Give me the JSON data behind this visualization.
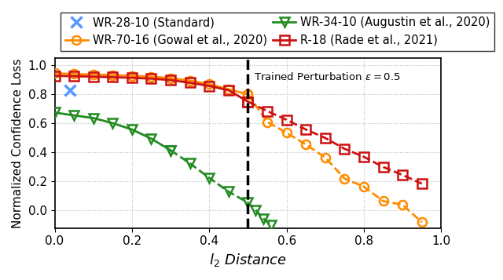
{
  "xlabel": "$l_2$ Distance",
  "ylabel": "Normalized Confidence Loss",
  "xlim": [
    0.0,
    1.0
  ],
  "ylim": [
    -0.12,
    1.05
  ],
  "yticks": [
    0.0,
    0.2,
    0.4,
    0.6,
    0.8,
    1.0
  ],
  "xticks": [
    0.0,
    0.2,
    0.4,
    0.6,
    0.8,
    1.0
  ],
  "vline_x": 0.5,
  "vline_label": "Trained Perturbation $\\epsilon=0.5$",
  "series": [
    {
      "label": "WR-28-10 (Standard)",
      "color": "#5599FF",
      "marker": "x",
      "solid_x": [
        0.04
      ],
      "solid_y": [
        0.826
      ],
      "dashed_x": [],
      "dashed_y": [],
      "linewidth": 2.0,
      "markersize": 10,
      "markeredgewidth": 2.5
    },
    {
      "label": "WR-34-10 (Augustin et al., 2020)",
      "color": "#228B22",
      "marker": "v",
      "solid_x": [
        0.0,
        0.05,
        0.1,
        0.15,
        0.2,
        0.25,
        0.3
      ],
      "solid_y": [
        0.675,
        0.655,
        0.637,
        0.602,
        0.558,
        0.495,
        0.415
      ],
      "dashed_x": [
        0.3,
        0.35,
        0.4,
        0.45,
        0.5,
        0.52,
        0.54,
        0.56
      ],
      "dashed_y": [
        0.415,
        0.325,
        0.225,
        0.13,
        0.055,
        0.005,
        -0.055,
        -0.1
      ],
      "linewidth": 2.0,
      "markersize": 8,
      "markeredgewidth": 1.8
    },
    {
      "label": "WR-70-16 (Gowal et al., 2020)",
      "color": "#FF8C00",
      "marker": "o",
      "solid_x": [
        0.0,
        0.05,
        0.1,
        0.15,
        0.2,
        0.25,
        0.3,
        0.35,
        0.4,
        0.45,
        0.5
      ],
      "solid_y": [
        0.945,
        0.94,
        0.937,
        0.933,
        0.928,
        0.922,
        0.912,
        0.895,
        0.87,
        0.835,
        0.8
      ],
      "dashed_x": [
        0.5,
        0.55,
        0.6,
        0.65,
        0.7,
        0.75,
        0.8,
        0.85,
        0.9,
        0.95
      ],
      "dashed_y": [
        0.8,
        0.61,
        0.535,
        0.455,
        0.365,
        0.22,
        0.165,
        0.065,
        0.04,
        -0.08
      ],
      "linewidth": 2.0,
      "markersize": 8,
      "markeredgewidth": 1.8
    },
    {
      "label": "R-18 (Rade et al., 2021)",
      "color": "#CC1111",
      "marker": "s",
      "solid_x": [
        0.0,
        0.05,
        0.1,
        0.15,
        0.2,
        0.25,
        0.3,
        0.35,
        0.4,
        0.45,
        0.5
      ],
      "solid_y": [
        0.928,
        0.925,
        0.922,
        0.918,
        0.914,
        0.908,
        0.898,
        0.88,
        0.858,
        0.828,
        0.75
      ],
      "dashed_x": [
        0.5,
        0.55,
        0.6,
        0.65,
        0.7,
        0.75,
        0.8,
        0.85,
        0.9,
        0.95
      ],
      "dashed_y": [
        0.75,
        0.685,
        0.625,
        0.558,
        0.5,
        0.425,
        0.37,
        0.3,
        0.245,
        0.185
      ],
      "linewidth": 2.0,
      "markersize": 8,
      "markeredgewidth": 1.8
    }
  ],
  "legend_order": [
    0,
    2,
    1,
    3
  ],
  "legend_ncol": 2,
  "legend_fontsize": 10.5,
  "tick_fontsize": 11,
  "xlabel_fontsize": 13,
  "ylabel_fontsize": 11,
  "background_color": "#FFFFFF",
  "grid_color": "#BBBBBB",
  "grid_linestyle": ":",
  "grid_linewidth": 0.8
}
